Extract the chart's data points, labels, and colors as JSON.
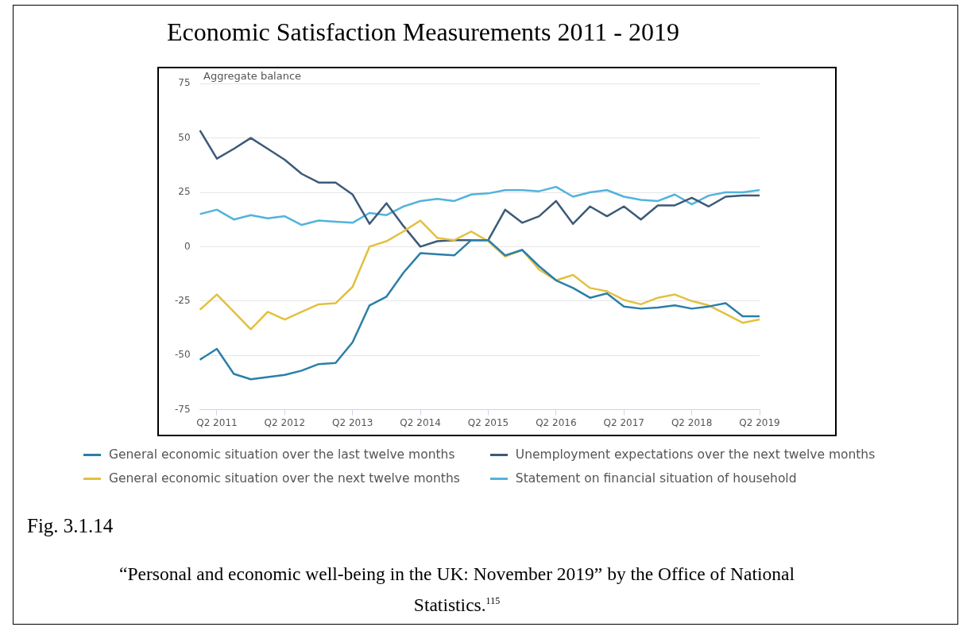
{
  "chart_data": {
    "type": "line",
    "title": "Economic Satisfaction Measurements 2011 - 2019",
    "ylabel": "Aggregate balance",
    "categories": [
      null,
      "Q2 2011",
      null,
      null,
      null,
      "Q2 2012",
      null,
      null,
      null,
      "Q2 2013",
      null,
      null,
      null,
      "Q2 2014",
      null,
      null,
      null,
      "Q2 2015",
      null,
      null,
      null,
      "Q2 2016",
      null,
      null,
      null,
      "Q2 2017",
      null,
      null,
      null,
      "Q2 2018",
      null,
      null,
      null,
      "Q2 2019"
    ],
    "series": [
      {
        "name": "General economic situation over the last twelve months",
        "color": "#2b7fa8",
        "values": [
          -52,
          -47,
          -58.5,
          -61,
          -60,
          -59,
          -57,
          -54,
          -53.5,
          -44,
          -27,
          -23,
          -12,
          -3,
          -3.5,
          -4,
          3,
          3,
          -4,
          -1.5,
          -9,
          -15.5,
          -19,
          -23.5,
          -21.5,
          -27.5,
          -28.5,
          -28,
          -27,
          -28.5,
          -27.5,
          -26,
          -32,
          -32
        ]
      },
      {
        "name": "General economic situation over the next twelve months",
        "color": "#e3c03e",
        "values": [
          -29,
          -22,
          -30,
          -38,
          -30,
          -33.5,
          -30,
          -26.5,
          -26,
          -18.5,
          0,
          2.5,
          7,
          12,
          4,
          3,
          7,
          2.5,
          -4.5,
          -1.5,
          -10.5,
          -15.5,
          -13,
          -19,
          -20.5,
          -24.5,
          -26.5,
          -23.5,
          -22,
          -25,
          -27,
          -31,
          -35,
          -33.5
        ]
      },
      {
        "name": "Unemployment expectations over the next twelve months",
        "color": "#3d5a78",
        "values": [
          53.5,
          40.5,
          45,
          50,
          45,
          40,
          33.5,
          29.5,
          29.5,
          24,
          10.5,
          20,
          9.5,
          0,
          2.5,
          3,
          3,
          3,
          17,
          11,
          14,
          21,
          10.5,
          18.5,
          14,
          18.5,
          12.5,
          19,
          19,
          22.5,
          18.5,
          23,
          23.5,
          23.5
        ]
      },
      {
        "name": "Statement on financial situation of household",
        "color": "#52b3dc",
        "values": [
          15,
          17,
          12.5,
          14.5,
          13,
          14,
          10,
          12,
          11.5,
          11,
          15.5,
          14.5,
          18.5,
          21,
          22,
          21,
          24,
          24.5,
          26,
          26,
          25.5,
          27.5,
          23,
          25,
          26,
          23,
          21.5,
          21,
          24,
          19.5,
          23.5,
          25,
          25,
          26
        ]
      }
    ],
    "ylim": [
      -75,
      75
    ],
    "yticks": [
      -75,
      -50,
      -25,
      0,
      25,
      50,
      75
    ],
    "grid": "y",
    "legend": "bottom",
    "annotations": [
      "Fig. 3.1.14",
      "“Personal and economic well-being in the UK: November 2019” by the Office of National Statistics.$^{115}$"
    ]
  }
}
